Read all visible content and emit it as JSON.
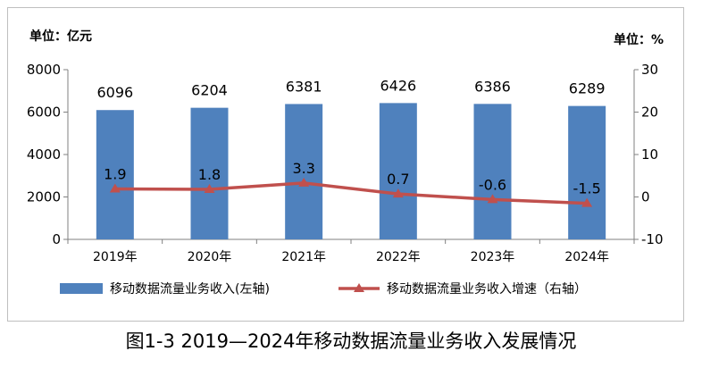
{
  "chart_data": {
    "type": "bar",
    "left_unit": "单位：亿元",
    "right_unit": "单位：%",
    "categories": [
      "2019年",
      "2020年",
      "2021年",
      "2022年",
      "2023年",
      "2024年"
    ],
    "series": [
      {
        "name": "移动数据流量业务收入(左轴)",
        "type": "bar",
        "axis": "left",
        "values": [
          6096,
          6204,
          6381,
          6426,
          6386,
          6289
        ],
        "labels": [
          "6096",
          "6204",
          "6381",
          "6426",
          "6386",
          "6289"
        ],
        "color": "#4f81bd"
      },
      {
        "name": "移动数据流量业务收入增速（右轴）",
        "type": "line",
        "axis": "right",
        "values": [
          1.9,
          1.8,
          3.3,
          0.7,
          -0.6,
          -1.5
        ],
        "labels": [
          "1.9",
          "1.8",
          "3.3",
          "0.7",
          "-0.6",
          "-1.5"
        ],
        "color": "#c0504d"
      }
    ],
    "y_left": {
      "min": 0,
      "max": 8000,
      "ticks": [
        "0",
        "2000",
        "4000",
        "6000",
        "8000"
      ]
    },
    "y_right": {
      "min": -10,
      "max": 30,
      "ticks": [
        "-10",
        "0",
        "10",
        "20",
        "30"
      ]
    },
    "grid": false,
    "legend_position": "bottom"
  },
  "caption": "图1-3  2019—2024年移动数据流量业务收入发展情况"
}
